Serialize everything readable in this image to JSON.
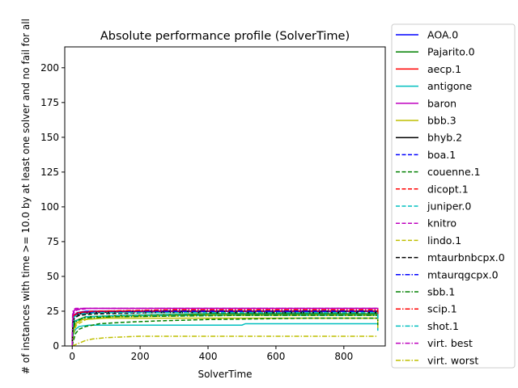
{
  "chart_data": {
    "type": "line",
    "title": "Absolute performance profile (SolverTime)",
    "xlabel": "SolverTime",
    "ylabel": "# of instances with time >= 10.0 by at least one solver and no fail for all",
    "xlim": [
      -22,
      922
    ],
    "ylim": [
      0,
      215
    ],
    "xticks": [
      0,
      200,
      400,
      600,
      800
    ],
    "yticks": [
      0,
      25,
      50,
      75,
      100,
      125,
      150,
      175,
      200
    ],
    "grid": false,
    "legend_position": "outside-right",
    "series": [
      {
        "name": "AOA.0",
        "color": "#0000ff",
        "dash": "solid",
        "points": [
          [
            0,
            0
          ],
          [
            2,
            14
          ],
          [
            5,
            22
          ],
          [
            15,
            24
          ],
          [
            40,
            25
          ],
          [
            900,
            25
          ],
          [
            900,
            20
          ]
        ]
      },
      {
        "name": "Pajarito.0",
        "color": "#008000",
        "dash": "solid",
        "points": [
          [
            0,
            0
          ],
          [
            3,
            13
          ],
          [
            8,
            18
          ],
          [
            40,
            21
          ],
          [
            150,
            22
          ],
          [
            400,
            23
          ],
          [
            900,
            23
          ],
          [
            900,
            18
          ]
        ]
      },
      {
        "name": "aecp.1",
        "color": "#ff0000",
        "dash": "solid",
        "points": [
          [
            0,
            0
          ],
          [
            2,
            16
          ],
          [
            5,
            22
          ],
          [
            20,
            24
          ],
          [
            80,
            25
          ],
          [
            900,
            25
          ],
          [
            900,
            21
          ]
        ]
      },
      {
        "name": "antigone",
        "color": "#00bfbf",
        "dash": "solid",
        "points": [
          [
            0,
            0
          ],
          [
            3,
            8
          ],
          [
            10,
            12
          ],
          [
            20,
            14
          ],
          [
            50,
            15
          ],
          [
            500,
            15
          ],
          [
            510,
            16
          ],
          [
            880,
            16
          ],
          [
            900,
            16
          ],
          [
            900,
            11
          ]
        ]
      },
      {
        "name": "baron",
        "color": "#bf00bf",
        "dash": "solid",
        "points": [
          [
            0,
            0
          ],
          [
            2,
            20
          ],
          [
            4,
            25
          ],
          [
            10,
            26
          ],
          [
            30,
            27
          ],
          [
            900,
            27
          ],
          [
            900,
            23
          ]
        ]
      },
      {
        "name": "bbb.3",
        "color": "#bfbf00",
        "dash": "solid",
        "points": [
          [
            0,
            0
          ],
          [
            3,
            10
          ],
          [
            10,
            16
          ],
          [
            30,
            19
          ],
          [
            100,
            20
          ],
          [
            900,
            20
          ],
          [
            900,
            13
          ]
        ]
      },
      {
        "name": "bhyb.2",
        "color": "#000000",
        "dash": "solid",
        "points": [
          [
            0,
            0
          ],
          [
            2,
            17
          ],
          [
            5,
            21
          ],
          [
            20,
            23
          ],
          [
            60,
            24
          ],
          [
            200,
            25
          ],
          [
            900,
            25
          ],
          [
            900,
            21
          ]
        ]
      },
      {
        "name": "boa.1",
        "color": "#0000ff",
        "dash": "dashed",
        "points": [
          [
            0,
            0
          ],
          [
            2,
            15
          ],
          [
            6,
            21
          ],
          [
            20,
            24
          ],
          [
            70,
            25
          ],
          [
            900,
            25
          ],
          [
            900,
            19
          ]
        ]
      },
      {
        "name": "couenne.1",
        "color": "#008000",
        "dash": "dashed",
        "points": [
          [
            0,
            0
          ],
          [
            5,
            5
          ],
          [
            10,
            9
          ],
          [
            20,
            12
          ],
          [
            40,
            14
          ],
          [
            80,
            16
          ],
          [
            150,
            17
          ],
          [
            250,
            18
          ],
          [
            400,
            19
          ],
          [
            700,
            20
          ],
          [
            900,
            20
          ],
          [
            900,
            15
          ]
        ]
      },
      {
        "name": "dicopt.1",
        "color": "#ff0000",
        "dash": "dashed",
        "points": [
          [
            0,
            0
          ],
          [
            2,
            18
          ],
          [
            6,
            22
          ],
          [
            25,
            24
          ],
          [
            120,
            25
          ],
          [
            900,
            25
          ],
          [
            900,
            20
          ]
        ]
      },
      {
        "name": "juniper.0",
        "color": "#00bfbf",
        "dash": "dashed",
        "points": [
          [
            0,
            0
          ],
          [
            3,
            12
          ],
          [
            10,
            18
          ],
          [
            40,
            21
          ],
          [
            150,
            22
          ],
          [
            900,
            22
          ],
          [
            900,
            17
          ]
        ]
      },
      {
        "name": "knitro",
        "color": "#bf00bf",
        "dash": "dashed",
        "points": [
          [
            0,
            0
          ],
          [
            2,
            19
          ],
          [
            5,
            24
          ],
          [
            15,
            26
          ],
          [
            50,
            27
          ],
          [
            900,
            27
          ],
          [
            900,
            22
          ]
        ]
      },
      {
        "name": "lindo.1",
        "color": "#bfbf00",
        "dash": "dashed",
        "points": [
          [
            0,
            0
          ],
          [
            4,
            9
          ],
          [
            12,
            15
          ],
          [
            40,
            19
          ],
          [
            120,
            21
          ],
          [
            400,
            22
          ],
          [
            900,
            22
          ],
          [
            900,
            16
          ]
        ]
      },
      {
        "name": "mtaurbnbcpx.0",
        "color": "#000000",
        "dash": "dashed",
        "points": [
          [
            0,
            0
          ],
          [
            2,
            14
          ],
          [
            6,
            20
          ],
          [
            20,
            22
          ],
          [
            60,
            23
          ],
          [
            250,
            24
          ],
          [
            900,
            24
          ],
          [
            900,
            19
          ]
        ]
      },
      {
        "name": "mtaurqgcpx.0",
        "color": "#0000ff",
        "dash": "dashdot",
        "points": [
          [
            0,
            0
          ],
          [
            2,
            16
          ],
          [
            5,
            22
          ],
          [
            20,
            24
          ],
          [
            100,
            25
          ],
          [
            900,
            25
          ],
          [
            900,
            20
          ]
        ]
      },
      {
        "name": "sbb.1",
        "color": "#008000",
        "dash": "dashdot",
        "points": [
          [
            0,
            0
          ],
          [
            3,
            11
          ],
          [
            8,
            17
          ],
          [
            30,
            20
          ],
          [
            120,
            21
          ],
          [
            500,
            22
          ],
          [
            900,
            22
          ],
          [
            900,
            17
          ]
        ]
      },
      {
        "name": "scip.1",
        "color": "#ff0000",
        "dash": "dashdot",
        "points": [
          [
            0,
            0
          ],
          [
            2,
            17
          ],
          [
            5,
            22
          ],
          [
            15,
            24
          ],
          [
            60,
            25
          ],
          [
            300,
            26
          ],
          [
            900,
            26
          ],
          [
            900,
            21
          ]
        ]
      },
      {
        "name": "shot.1",
        "color": "#00bfbf",
        "dash": "dashdot",
        "points": [
          [
            0,
            0
          ],
          [
            2,
            15
          ],
          [
            6,
            21
          ],
          [
            20,
            23
          ],
          [
            80,
            24
          ],
          [
            900,
            24
          ],
          [
            900,
            19
          ]
        ]
      },
      {
        "name": "virt. best",
        "color": "#bf00bf",
        "dash": "dashdot",
        "points": [
          [
            0,
            0
          ],
          [
            1,
            22
          ],
          [
            3,
            26
          ],
          [
            10,
            27
          ],
          [
            900,
            27
          ],
          [
            900,
            27
          ]
        ]
      },
      {
        "name": "virt. worst",
        "color": "#bfbf00",
        "dash": "dashdot",
        "points": [
          [
            0,
            0
          ],
          [
            10,
            1
          ],
          [
            20,
            2
          ],
          [
            30,
            3
          ],
          [
            40,
            4
          ],
          [
            60,
            5
          ],
          [
            100,
            6
          ],
          [
            200,
            7
          ],
          [
            900,
            7
          ],
          [
            900,
            7
          ]
        ]
      }
    ]
  }
}
